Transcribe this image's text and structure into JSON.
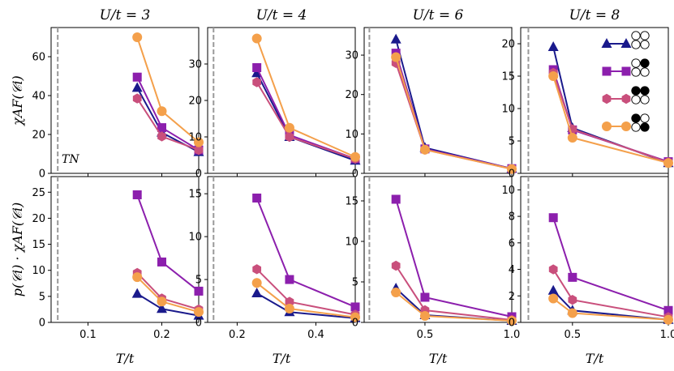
{
  "figure": {
    "ylabel_top": "χAF(𝒞i)",
    "ylabel_bottom": "p(𝒞i) · χAF(𝒞i)",
    "tn_label": "TN"
  },
  "series_styles": [
    {
      "marker": "triangle",
      "color": "#1a1a8c"
    },
    {
      "marker": "square",
      "color": "#8c1fad"
    },
    {
      "marker": "hexagon",
      "color": "#c94f7c"
    },
    {
      "marker": "circle",
      "color": "#f4a04b"
    }
  ],
  "legend": {
    "placement": "top-right of U/t=8 top panel",
    "configs": [
      {
        "filled": [
          false,
          false,
          false,
          false
        ]
      },
      {
        "filled": [
          false,
          true,
          false,
          false
        ]
      },
      {
        "filled": [
          true,
          true,
          false,
          false
        ]
      },
      {
        "filled": [
          true,
          false,
          false,
          true
        ]
      }
    ]
  },
  "chart_data": [
    {
      "type": "line",
      "title": "U/t = 3",
      "xlabel": "T/t",
      "ylabel": "χAF(𝒞i)",
      "x": [
        0.1667,
        0.2,
        0.25
      ],
      "xlim": [
        0.05,
        0.25
      ],
      "ylim": [
        0,
        75
      ],
      "xticks": [
        0.1,
        0.2
      ],
      "yticks": [
        0,
        20,
        40,
        60
      ],
      "tn": 0.059,
      "series": [
        {
          "values": [
            44,
            21,
            11
          ]
        },
        {
          "values": [
            49.5,
            23.5,
            12
          ]
        },
        {
          "values": [
            38.5,
            19,
            12
          ]
        },
        {
          "values": [
            70,
            32,
            16
          ]
        }
      ]
    },
    {
      "type": "line",
      "title": "U/t = 4",
      "xlabel": "T/t",
      "ylabel": "",
      "x": [
        0.25,
        0.333,
        0.5
      ],
      "xlim": [
        0.125,
        0.5
      ],
      "ylim": [
        0,
        40
      ],
      "xticks": [
        0.2,
        0.4
      ],
      "yticks": [
        0,
        10,
        20,
        30
      ],
      "tn": 0.14,
      "series": [
        {
          "values": [
            27.5,
            10,
            3.5
          ]
        },
        {
          "values": [
            29,
            10.5,
            4
          ]
        },
        {
          "values": [
            25,
            10,
            4
          ]
        },
        {
          "values": [
            37,
            12.5,
            4.5
          ]
        }
      ]
    },
    {
      "type": "line",
      "title": "U/t = 6",
      "xlabel": "T/t",
      "ylabel": "",
      "x": [
        0.333,
        0.5,
        1.0
      ],
      "xlim": [
        0.15,
        1.0
      ],
      "ylim": [
        0,
        37
      ],
      "xticks": [
        0.5,
        1.0
      ],
      "yticks": [
        0,
        10,
        20,
        30
      ],
      "tn": 0.18,
      "series": [
        {
          "values": [
            34,
            6.5,
            1.2
          ]
        },
        {
          "values": [
            30.5,
            6.2,
            1.2
          ]
        },
        {
          "values": [
            28,
            6,
            1.1
          ]
        },
        {
          "values": [
            29.5,
            6,
            1.1
          ]
        }
      ]
    },
    {
      "type": "line",
      "title": "U/t = 8",
      "xlabel": "T/t",
      "ylabel": "",
      "x": [
        0.4,
        0.5,
        1.0
      ],
      "xlim": [
        0.23,
        1.0
      ],
      "ylim": [
        0,
        22.5
      ],
      "xticks": [
        0.5,
        1.0
      ],
      "yticks": [
        0,
        5,
        10,
        15,
        20
      ],
      "tn": 0.27,
      "series": [
        {
          "values": [
            19.5,
            7,
            1.6
          ]
        },
        {
          "values": [
            16,
            6.7,
            1.8
          ]
        },
        {
          "values": [
            15.5,
            6.8,
            1.7
          ]
        },
        {
          "values": [
            15,
            5.5,
            1.6
          ]
        }
      ]
    },
    {
      "type": "line",
      "title": "",
      "xlabel": "T/t",
      "ylabel": "p(𝒞i) · χAF(𝒞i)",
      "x": [
        0.1667,
        0.2,
        0.25
      ],
      "xlim": [
        0.05,
        0.25
      ],
      "ylim": [
        0,
        28
      ],
      "xticks": [
        0.1,
        0.2
      ],
      "yticks": [
        0,
        5,
        10,
        15,
        20,
        25
      ],
      "tn": 0.059,
      "series": [
        {
          "values": [
            5.5,
            2.6,
            1.3
          ]
        },
        {
          "values": [
            24.5,
            11.6,
            6
          ]
        },
        {
          "values": [
            9.5,
            4.6,
            2.5
          ]
        },
        {
          "values": [
            8.7,
            4,
            2
          ]
        }
      ]
    },
    {
      "type": "line",
      "title": "",
      "xlabel": "T/t",
      "ylabel": "",
      "x": [
        0.25,
        0.333,
        0.5
      ],
      "xlim": [
        0.125,
        0.5
      ],
      "ylim": [
        0,
        17
      ],
      "xticks": [
        0.2,
        0.4
      ],
      "yticks": [
        0,
        5,
        10,
        15
      ],
      "tn": 0.14,
      "series": [
        {
          "values": [
            3.4,
            1.2,
            0.5
          ]
        },
        {
          "values": [
            14.5,
            5,
            1.8
          ]
        },
        {
          "values": [
            6.2,
            2.4,
            0.9
          ]
        },
        {
          "values": [
            4.6,
            1.6,
            0.6
          ]
        }
      ]
    },
    {
      "type": "line",
      "title": "",
      "xlabel": "T/t",
      "ylabel": "",
      "x": [
        0.333,
        0.5,
        1.0
      ],
      "xlim": [
        0.15,
        1.0
      ],
      "ylim": [
        0,
        18
      ],
      "xticks": [
        0.5,
        1.0
      ],
      "yticks": [
        0,
        5,
        10,
        15
      ],
      "tn": 0.18,
      "series": [
        {
          "values": [
            4.2,
            0.9,
            0.2
          ]
        },
        {
          "values": [
            15.2,
            3.1,
            0.7
          ]
        },
        {
          "values": [
            7,
            1.5,
            0.3
          ]
        },
        {
          "values": [
            3.7,
            0.8,
            0.2
          ]
        }
      ]
    },
    {
      "type": "line",
      "title": "",
      "xlabel": "T/t",
      "ylabel": "",
      "x": [
        0.4,
        0.5,
        1.0
      ],
      "xlim": [
        0.23,
        1.0
      ],
      "ylim": [
        0,
        11
      ],
      "xticks": [
        0.5,
        1.0
      ],
      "yticks": [
        0,
        2,
        4,
        6,
        8,
        10
      ],
      "tn": 0.27,
      "series": [
        {
          "values": [
            2.4,
            0.9,
            0.2
          ]
        },
        {
          "values": [
            7.9,
            3.4,
            0.9
          ]
        },
        {
          "values": [
            4,
            1.7,
            0.4
          ]
        },
        {
          "values": [
            1.8,
            0.7,
            0.2
          ]
        }
      ]
    }
  ]
}
